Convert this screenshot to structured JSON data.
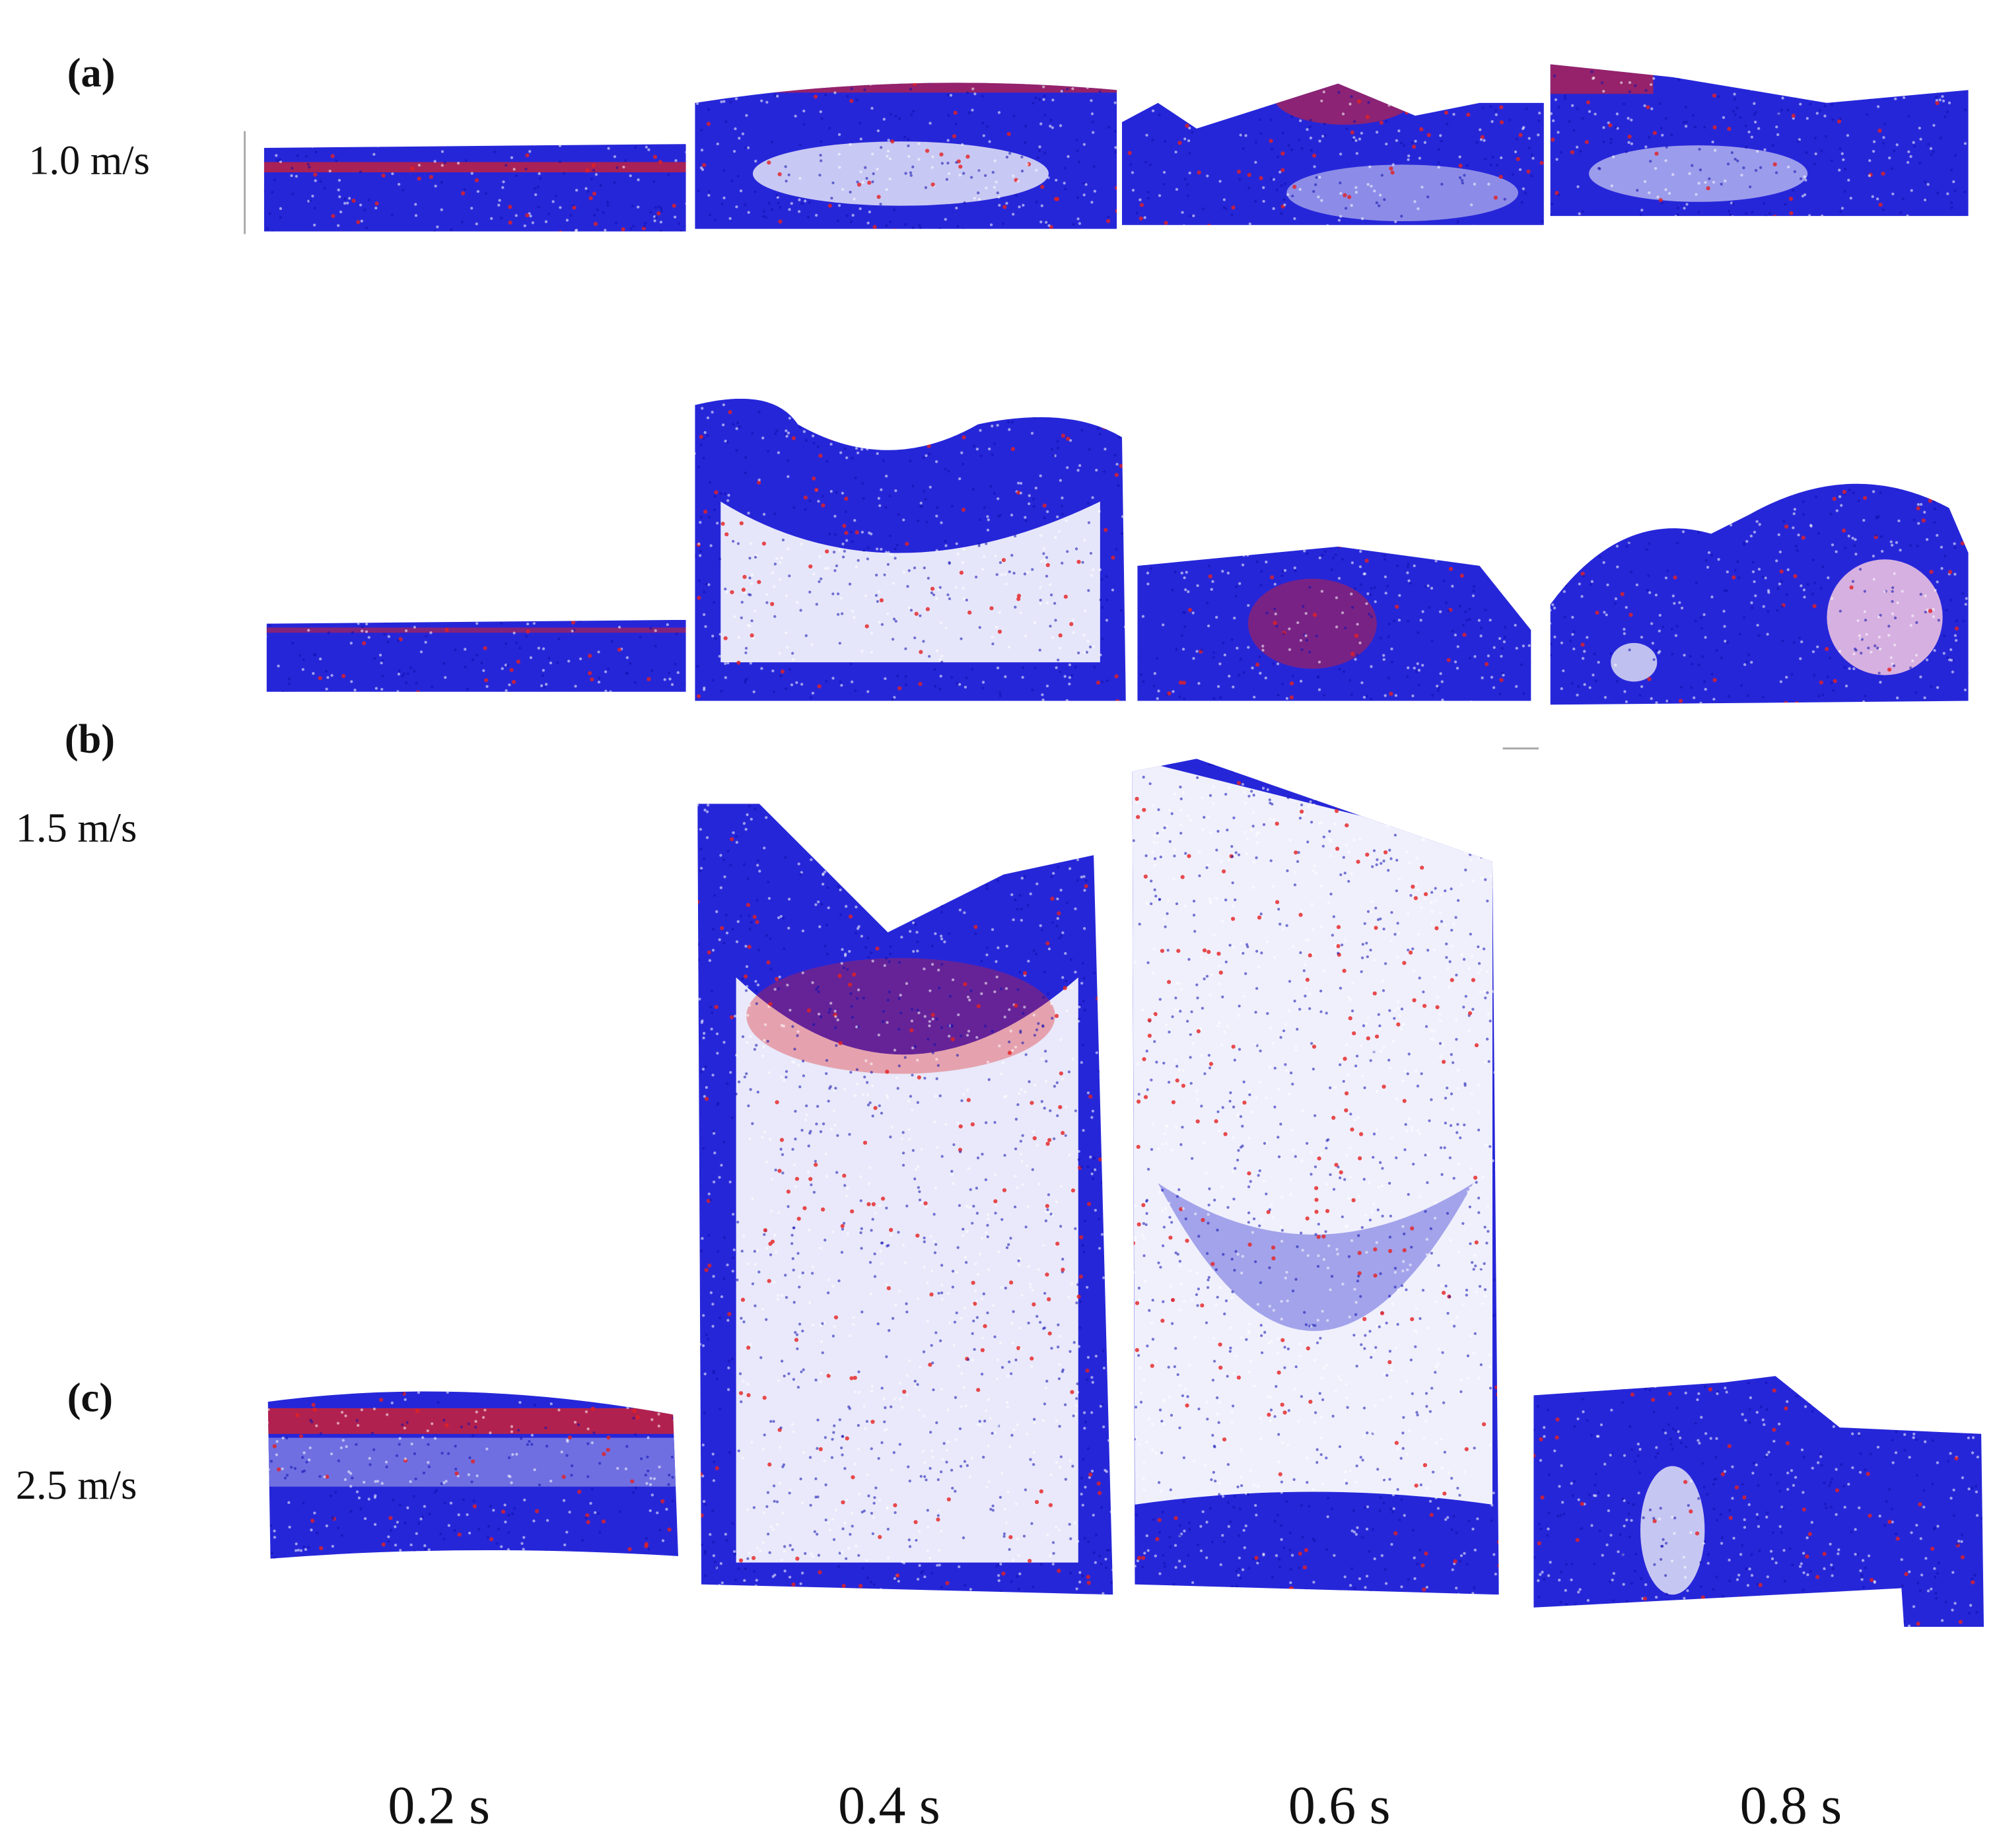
{
  "rows": [
    {
      "label": "(a)",
      "speed": "1.0 m/s"
    },
    {
      "label": "(b)",
      "speed": "1.5 m/s"
    },
    {
      "label": "(c)",
      "speed": "2.5 m/s"
    }
  ],
  "time_labels": [
    "0.2 s",
    "0.4 s",
    "0.6 s",
    "0.8 s"
  ]
}
